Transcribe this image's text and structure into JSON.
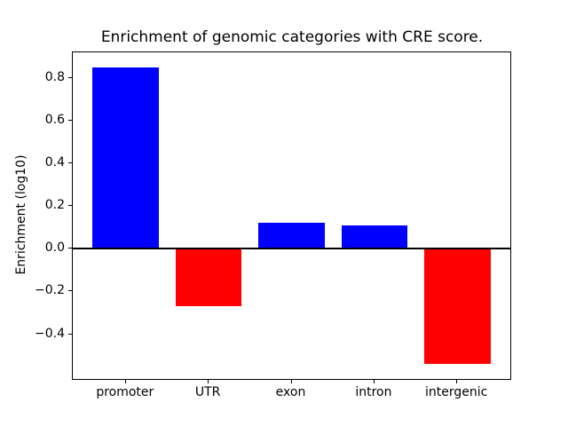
{
  "chart_data": {
    "type": "bar",
    "title": "Enrichment of genomic categories with CRE score.",
    "xlabel": "",
    "ylabel": "Enrichment (log10)",
    "categories": [
      "promoter",
      "UTR",
      "exon",
      "intron",
      "intergenic"
    ],
    "values": [
      0.85,
      -0.27,
      0.12,
      0.11,
      -0.54
    ],
    "positive_color": "#0000ff",
    "negative_color": "#ff0000",
    "bar_colors": [
      "#0000ff",
      "#ff0000",
      "#0000ff",
      "#0000ff",
      "#ff0000"
    ],
    "ylim": [
      -0.61,
      0.92
    ],
    "xlim": [
      -0.64,
      4.64
    ],
    "bar_width_data_units": 0.8,
    "yticks": [
      0.8,
      0.6,
      0.4,
      0.2,
      0.0,
      -0.2,
      -0.4
    ],
    "ytick_labels": [
      "0.8",
      "0.6",
      "0.4",
      "0.2",
      "0.0",
      "−0.2",
      "−0.4"
    ],
    "zero_line": true,
    "grid": false,
    "legend": false,
    "background_color": "#ffffff",
    "axis_color": "#000000"
  }
}
